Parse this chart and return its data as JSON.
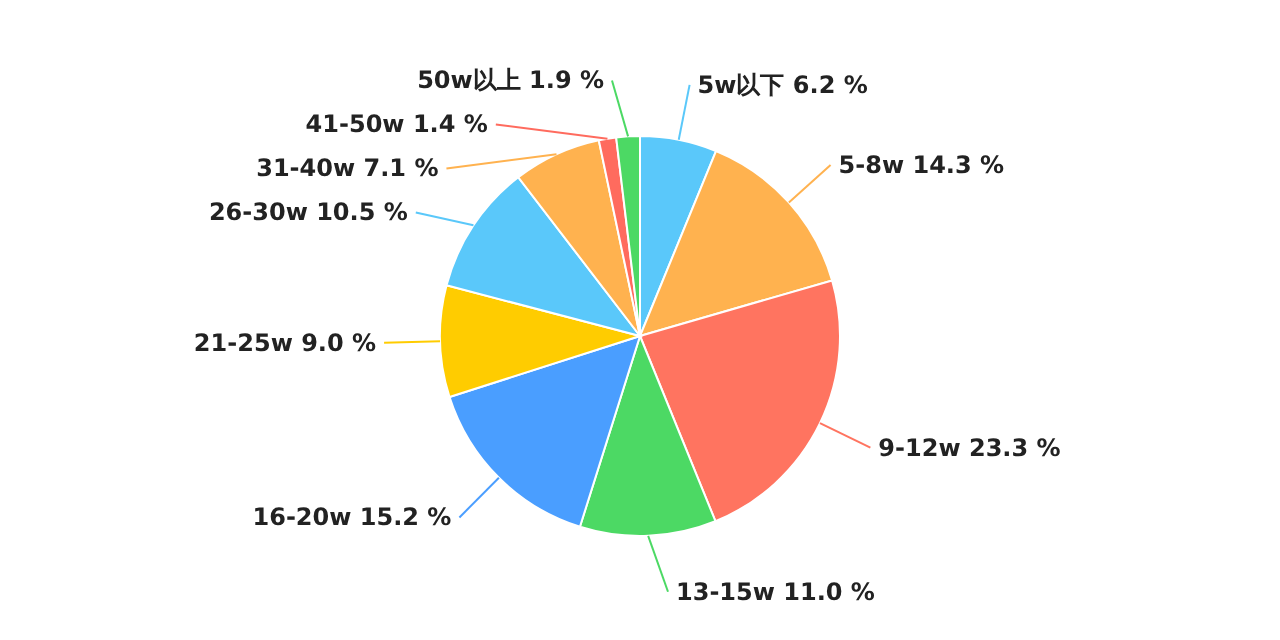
{
  "chart_data": {
    "type": "pie",
    "categories": [
      "5w以下",
      "5-8w",
      "9-12w",
      "13-15w",
      "16-20w",
      "21-25w",
      "26-30w",
      "31-40w",
      "41-50w",
      "50w以上"
    ],
    "values": [
      6.2,
      14.3,
      23.3,
      11.0,
      15.2,
      9.0,
      10.5,
      7.1,
      1.4,
      1.9
    ],
    "value_labels": [
      "6.2 %",
      "14.3 %",
      "23.3 %",
      "11.0 %",
      "15.2 %",
      "9.0 %",
      "10.5 %",
      "7.1 %",
      "1.4 %",
      "1.9 %"
    ],
    "colors": [
      "#5ac8fa",
      "#ffb24f",
      "#ff7460",
      "#4cd964",
      "#4a9eff",
      "#ffcc00",
      "#5ac8fa",
      "#ffb24f",
      "#ff6b5e",
      "#4cd964"
    ]
  }
}
